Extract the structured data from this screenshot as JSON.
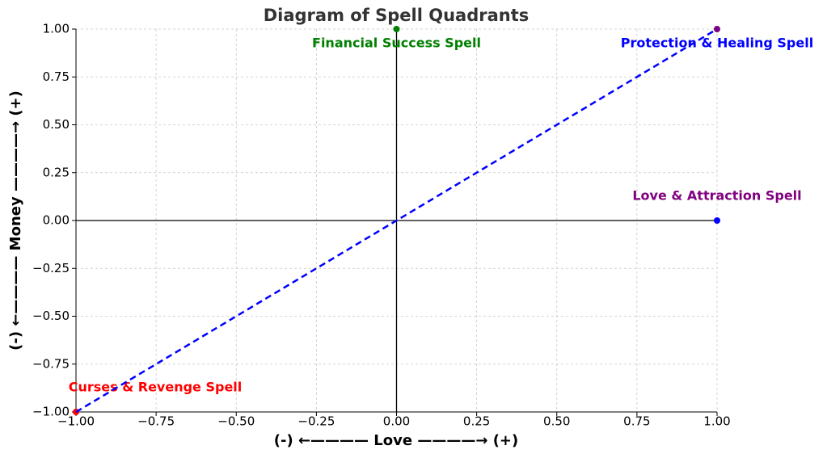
{
  "chart_data": {
    "type": "scatter",
    "title": "Diagram of Spell Quadrants",
    "xlabel": "(-) ←———— Love ————→ (+)",
    "ylabel": "(-) ←———— Money ————→ (+)",
    "points": [
      {
        "x": 0,
        "y": 1,
        "label": "Financial Success Spell",
        "color": "green",
        "label_color": "green"
      },
      {
        "x": 1,
        "y": 1,
        "label": "Protection & Healing Spell",
        "color": "purple",
        "label_color": "blue"
      },
      {
        "x": 1,
        "y": 0,
        "label": "Love & Attraction Spell",
        "color": "blue",
        "label_color": "purple"
      },
      {
        "x": -1,
        "y": -1,
        "label": "Curses & Revenge Spell",
        "color": "red",
        "label_color": "red"
      }
    ],
    "line": {
      "x": [
        -1,
        1
      ],
      "y": [
        -1,
        1
      ],
      "color": "blue",
      "dashed": true
    },
    "xlim": [
      -1,
      1
    ],
    "ylim": [
      -1,
      1
    ],
    "xticks": [
      {
        "value": -1,
        "label": "−1.00"
      },
      {
        "value": -0.75,
        "label": "−0.75"
      },
      {
        "value": -0.5,
        "label": "−0.50"
      },
      {
        "value": -0.25,
        "label": "−0.25"
      },
      {
        "value": 0,
        "label": "0.00"
      },
      {
        "value": 0.25,
        "label": "0.25"
      },
      {
        "value": 0.5,
        "label": "0.50"
      },
      {
        "value": 0.75,
        "label": "0.75"
      },
      {
        "value": 1,
        "label": "1.00"
      }
    ],
    "yticks": [
      {
        "value": -1,
        "label": "−1.00"
      },
      {
        "value": -0.75,
        "label": "−0.75"
      },
      {
        "value": -0.5,
        "label": "−0.50"
      },
      {
        "value": -0.25,
        "label": "−0.25"
      },
      {
        "value": 0,
        "label": "0.00"
      },
      {
        "value": 0.25,
        "label": "0.25"
      },
      {
        "value": 0.5,
        "label": "0.50"
      },
      {
        "value": 0.75,
        "label": "0.75"
      },
      {
        "value": 1,
        "label": "1.00"
      }
    ],
    "grid": true,
    "zero_lines": true
  }
}
